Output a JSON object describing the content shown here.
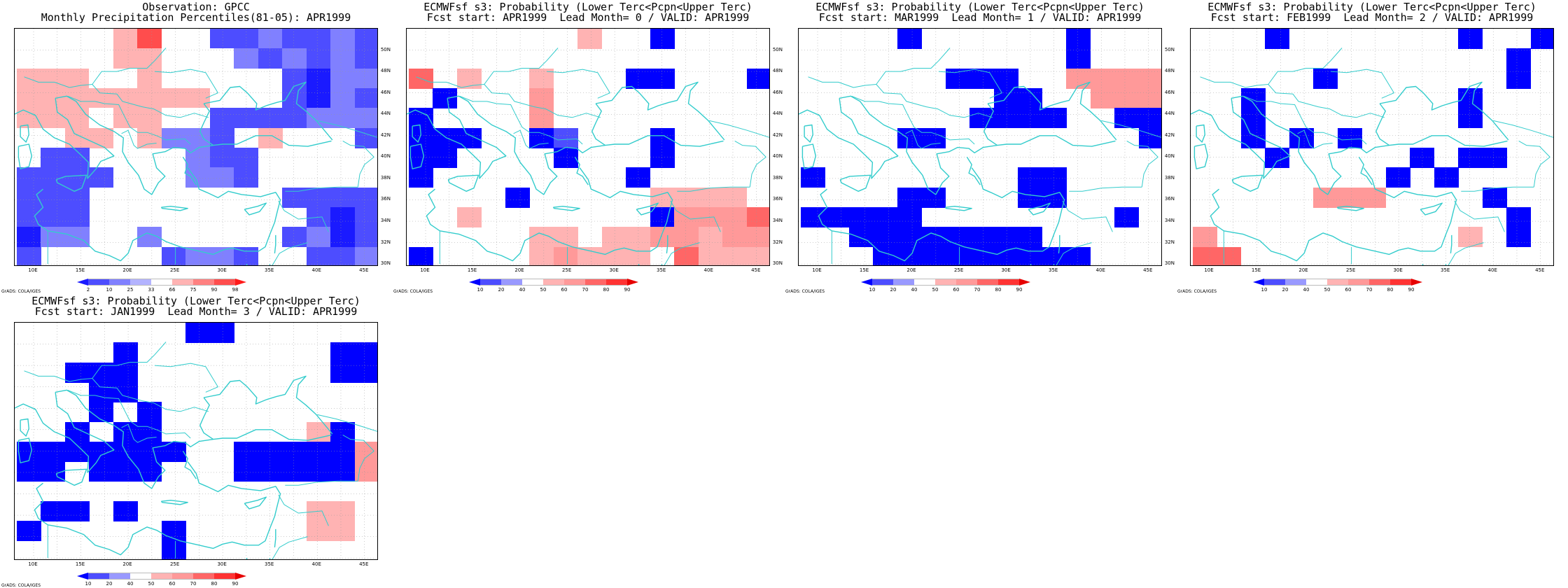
{
  "panels": [
    {
      "title1": "Observation: GPCC",
      "title2": "Monthly Precipitation Percentiles(81-05): APR1999",
      "colorbar": {
        "labels": [
          "2",
          "10",
          "25",
          "33",
          "66",
          "75",
          "90",
          "98"
        ],
        "colors": [
          "#1a1aff",
          "#4d4dff",
          "#8080ff",
          "#b3b3ff",
          "#ffffff",
          "#ffb3b3",
          "#ff8080",
          "#ff4d4d",
          "#ff1a1a"
        ]
      },
      "grid": [
        [
          0,
          0,
          5,
          5,
          6,
          8,
          5,
          0,
          2,
          2,
          3,
          2,
          2,
          3,
          2
        ],
        [
          5,
          0,
          5,
          5,
          6,
          6,
          5,
          5,
          5,
          3,
          2,
          3,
          2,
          3,
          2
        ],
        [
          6,
          6,
          6,
          5,
          5,
          6,
          5,
          5,
          5,
          5,
          5,
          2,
          1,
          3,
          3
        ],
        [
          6,
          6,
          6,
          6,
          6,
          6,
          6,
          6,
          5,
          5,
          5,
          2,
          1,
          3,
          2
        ],
        [
          6,
          6,
          6,
          5,
          6,
          6,
          5,
          5,
          2,
          2,
          2,
          2,
          3,
          3,
          3
        ],
        [
          0,
          5,
          6,
          6,
          5,
          6,
          3,
          3,
          2,
          0,
          6,
          0,
          0,
          0,
          2
        ],
        [
          0,
          2,
          2,
          0,
          0,
          0,
          0,
          3,
          2,
          2,
          0,
          0,
          0,
          0,
          0
        ],
        [
          2,
          2,
          2,
          2,
          0,
          0,
          0,
          3,
          3,
          2,
          0,
          0,
          0,
          0,
          0
        ],
        [
          2,
          2,
          2,
          0,
          0,
          0,
          0,
          0,
          0,
          0,
          5,
          2,
          2,
          2,
          2
        ],
        [
          2,
          2,
          2,
          0,
          0,
          0,
          0,
          0,
          0,
          0,
          0,
          0,
          2,
          1,
          2
        ],
        [
          1,
          3,
          3,
          0,
          0,
          3,
          0,
          0,
          0,
          0,
          0,
          2,
          3,
          1,
          2
        ],
        [
          2,
          0,
          0,
          0,
          0,
          0,
          2,
          3,
          3,
          2,
          0,
          0,
          2,
          2,
          3
        ]
      ]
    },
    {
      "title1": "ECMWFsf s3: Probability (Lower Terc<Pcpn<Upper Terc)",
      "title2": "Fcst start: APR1999  Lead Month= 0 / VALID: APR1999",
      "colorbar": {
        "labels": [
          "10",
          "20",
          "40",
          "50",
          "60",
          "70",
          "80",
          "90"
        ],
        "colors": [
          "#0000ff",
          "#4d4dff",
          "#9999ff",
          "#ffffff",
          "#ffb3b3",
          "#ff9999",
          "#ff6666",
          "#ff3333",
          "#e60000"
        ]
      },
      "grid": [
        [
          0,
          0,
          0,
          0,
          4,
          4,
          4,
          5,
          4,
          0,
          1,
          0,
          4,
          4,
          4
        ],
        [
          0,
          0,
          0,
          0,
          4,
          4,
          4,
          4,
          4,
          4,
          4,
          4,
          4,
          4,
          4
        ],
        [
          7,
          0,
          5,
          0,
          4,
          5,
          4,
          4,
          4,
          1,
          1,
          4,
          4,
          4,
          1
        ],
        [
          0,
          1,
          0,
          0,
          4,
          6,
          4,
          4,
          4,
          0,
          0,
          4,
          4,
          4,
          4
        ],
        [
          1,
          0,
          0,
          0,
          4,
          6,
          0,
          4,
          4,
          0,
          0,
          0,
          0,
          0,
          4
        ],
        [
          1,
          1,
          1,
          0,
          4,
          1,
          2,
          4,
          4,
          4,
          1,
          0,
          0,
          0,
          0
        ],
        [
          1,
          1,
          0,
          4,
          0,
          4,
          1,
          4,
          4,
          4,
          1,
          0,
          0,
          0,
          0
        ],
        [
          1,
          0,
          0,
          0,
          4,
          4,
          4,
          0,
          4,
          1,
          0,
          0,
          0,
          0,
          0
        ],
        [
          0,
          0,
          0,
          0,
          1,
          0,
          0,
          0,
          4,
          4,
          5,
          5,
          5,
          5,
          0
        ],
        [
          0,
          0,
          5,
          0,
          4,
          4,
          0,
          4,
          0,
          4,
          1,
          6,
          6,
          6,
          7
        ],
        [
          0,
          0,
          0,
          4,
          4,
          5,
          5,
          4,
          5,
          5,
          6,
          6,
          5,
          6,
          6
        ],
        [
          1,
          0,
          0,
          4,
          4,
          5,
          6,
          5,
          5,
          5,
          4,
          7,
          5,
          5,
          5
        ]
      ]
    },
    {
      "title1": "ECMWFsf s3: Probability (Lower Terc<Pcpn<Upper Terc)",
      "title2": "Fcst start: MAR1999  Lead Month= 1 / VALID: APR1999",
      "colorbar": {
        "labels": [
          "10",
          "20",
          "40",
          "50",
          "60",
          "70",
          "80",
          "90"
        ],
        "colors": [
          "#0000ff",
          "#4d4dff",
          "#9999ff",
          "#ffffff",
          "#ffb3b3",
          "#ff9999",
          "#ff6666",
          "#ff3333",
          "#e60000"
        ]
      },
      "grid": [
        [
          0,
          0,
          0,
          0,
          1,
          0,
          0,
          0,
          0,
          4,
          0,
          1,
          0,
          4,
          4
        ],
        [
          0,
          0,
          0,
          0,
          0,
          0,
          0,
          0,
          0,
          4,
          4,
          1,
          4,
          4,
          4
        ],
        [
          0,
          4,
          0,
          0,
          0,
          0,
          1,
          1,
          1,
          4,
          4,
          6,
          6,
          6,
          6
        ],
        [
          0,
          0,
          0,
          4,
          4,
          4,
          4,
          0,
          1,
          1,
          4,
          4,
          6,
          6,
          6
        ],
        [
          0,
          0,
          0,
          4,
          4,
          4,
          4,
          1,
          1,
          1,
          1,
          4,
          4,
          1,
          1
        ],
        [
          0,
          0,
          0,
          4,
          1,
          1,
          4,
          4,
          0,
          0,
          0,
          0,
          4,
          4,
          1
        ],
        [
          0,
          0,
          0,
          0,
          4,
          4,
          4,
          0,
          0,
          0,
          0,
          0,
          0,
          0,
          0
        ],
        [
          1,
          0,
          0,
          0,
          0,
          0,
          4,
          4,
          0,
          1,
          1,
          0,
          0,
          0,
          0
        ],
        [
          0,
          0,
          0,
          0,
          1,
          1,
          0,
          0,
          0,
          1,
          1,
          0,
          0,
          0,
          0
        ],
        [
          1,
          1,
          1,
          1,
          1,
          0,
          0,
          0,
          0,
          0,
          0,
          0,
          0,
          1,
          0
        ],
        [
          4,
          4,
          1,
          1,
          1,
          1,
          1,
          1,
          1,
          1,
          0,
          0,
          0,
          0,
          0
        ],
        [
          0,
          4,
          4,
          1,
          1,
          1,
          1,
          1,
          1,
          1,
          1,
          1,
          0,
          0,
          0
        ]
      ]
    },
    {
      "title1": "ECMWFsf s3: Probability (Lower Terc<Pcpn<Upper Terc)",
      "title2": "Fcst start: FEB1999  Lead Month= 2 / VALID: APR1999",
      "colorbar": {
        "labels": [
          "10",
          "20",
          "40",
          "50",
          "60",
          "70",
          "80",
          "90"
        ],
        "colors": [
          "#0000ff",
          "#4d4dff",
          "#9999ff",
          "#ffffff",
          "#ffb3b3",
          "#ff9999",
          "#ff6666",
          "#ff3333",
          "#e60000"
        ]
      },
      "grid": [
        [
          0,
          0,
          0,
          1,
          0,
          4,
          0,
          0,
          4,
          0,
          0,
          1,
          0,
          0,
          1
        ],
        [
          0,
          0,
          0,
          0,
          0,
          0,
          0,
          0,
          0,
          0,
          0,
          0,
          0,
          1,
          0
        ],
        [
          0,
          4,
          0,
          0,
          0,
          1,
          0,
          0,
          0,
          0,
          0,
          0,
          0,
          1,
          0
        ],
        [
          4,
          0,
          1,
          0,
          0,
          0,
          0,
          0,
          0,
          0,
          0,
          1,
          0,
          0,
          4
        ],
        [
          4,
          0,
          1,
          0,
          4,
          0,
          0,
          0,
          0,
          0,
          0,
          1,
          0,
          4,
          4
        ],
        [
          4,
          0,
          1,
          4,
          1,
          0,
          1,
          0,
          0,
          0,
          4,
          0,
          0,
          4,
          4
        ],
        [
          4,
          4,
          0,
          1,
          0,
          0,
          0,
          0,
          0,
          1,
          0,
          1,
          1,
          0,
          4
        ],
        [
          4,
          4,
          0,
          0,
          0,
          0,
          0,
          0,
          1,
          0,
          1,
          0,
          0,
          0,
          4
        ],
        [
          4,
          0,
          4,
          4,
          4,
          6,
          6,
          6,
          4,
          4,
          4,
          0,
          1,
          0,
          0
        ],
        [
          4,
          4,
          4,
          4,
          4,
          0,
          0,
          0,
          0,
          0,
          0,
          4,
          0,
          1,
          0
        ],
        [
          6,
          4,
          4,
          4,
          4,
          4,
          0,
          0,
          0,
          0,
          0,
          5,
          0,
          1,
          0
        ],
        [
          7,
          7,
          4,
          4,
          4,
          4,
          0,
          0,
          0,
          0,
          0,
          0,
          0,
          0,
          0
        ]
      ]
    },
    {
      "title1": "ECMWFsf s3: Probability (Lower Terc<Pcpn<Upper Terc)",
      "title2": "Fcst start: JAN1999  Lead Month= 3 / VALID: APR1999",
      "colorbar": {
        "labels": [
          "10",
          "20",
          "40",
          "50",
          "60",
          "70",
          "80",
          "90"
        ],
        "colors": [
          "#0000ff",
          "#4d4dff",
          "#9999ff",
          "#ffffff",
          "#ffb3b3",
          "#ff9999",
          "#ff6666",
          "#ff3333",
          "#e60000"
        ]
      },
      "grid": [
        [
          0,
          0,
          0,
          0,
          0,
          0,
          0,
          1,
          1,
          0,
          0,
          4,
          0,
          0,
          0
        ],
        [
          0,
          0,
          0,
          0,
          1,
          0,
          0,
          0,
          0,
          0,
          0,
          0,
          0,
          1,
          1
        ],
        [
          0,
          0,
          1,
          1,
          1,
          0,
          0,
          0,
          4,
          0,
          0,
          0,
          0,
          1,
          1
        ],
        [
          0,
          0,
          0,
          1,
          1,
          0,
          0,
          0,
          4,
          0,
          0,
          0,
          0,
          0,
          0
        ],
        [
          0,
          0,
          0,
          1,
          0,
          1,
          0,
          4,
          0,
          0,
          0,
          0,
          0,
          0,
          0
        ],
        [
          0,
          0,
          1,
          0,
          1,
          1,
          0,
          0,
          4,
          0,
          4,
          4,
          5,
          1,
          0
        ],
        [
          1,
          1,
          1,
          1,
          1,
          1,
          1,
          0,
          4,
          1,
          1,
          1,
          1,
          1,
          6
        ],
        [
          1,
          1,
          0,
          1,
          1,
          1,
          0,
          0,
          4,
          1,
          1,
          1,
          1,
          1,
          6
        ],
        [
          4,
          0,
          0,
          0,
          0,
          0,
          4,
          0,
          0,
          0,
          0,
          0,
          0,
          0,
          0
        ],
        [
          0,
          1,
          1,
          0,
          1,
          0,
          4,
          0,
          0,
          0,
          0,
          0,
          5,
          5,
          4
        ],
        [
          1,
          0,
          0,
          0,
          0,
          0,
          1,
          0,
          0,
          0,
          0,
          0,
          5,
          5,
          4
        ],
        [
          0,
          0,
          4,
          0,
          0,
          0,
          1,
          0,
          0,
          0,
          0,
          0,
          0,
          0,
          0
        ]
      ]
    }
  ],
  "lat_labels": [
    "50N",
    "48N",
    "46N",
    "44N",
    "42N",
    "40N",
    "38N",
    "36N",
    "34N",
    "32N",
    "30N"
  ],
  "lon_labels": [
    "10E",
    "15E",
    "20E",
    "25E",
    "30E",
    "35E",
    "40E",
    "45E"
  ],
  "credit": "GrADS: COLA/IGES",
  "coast_color": "#33cccc"
}
